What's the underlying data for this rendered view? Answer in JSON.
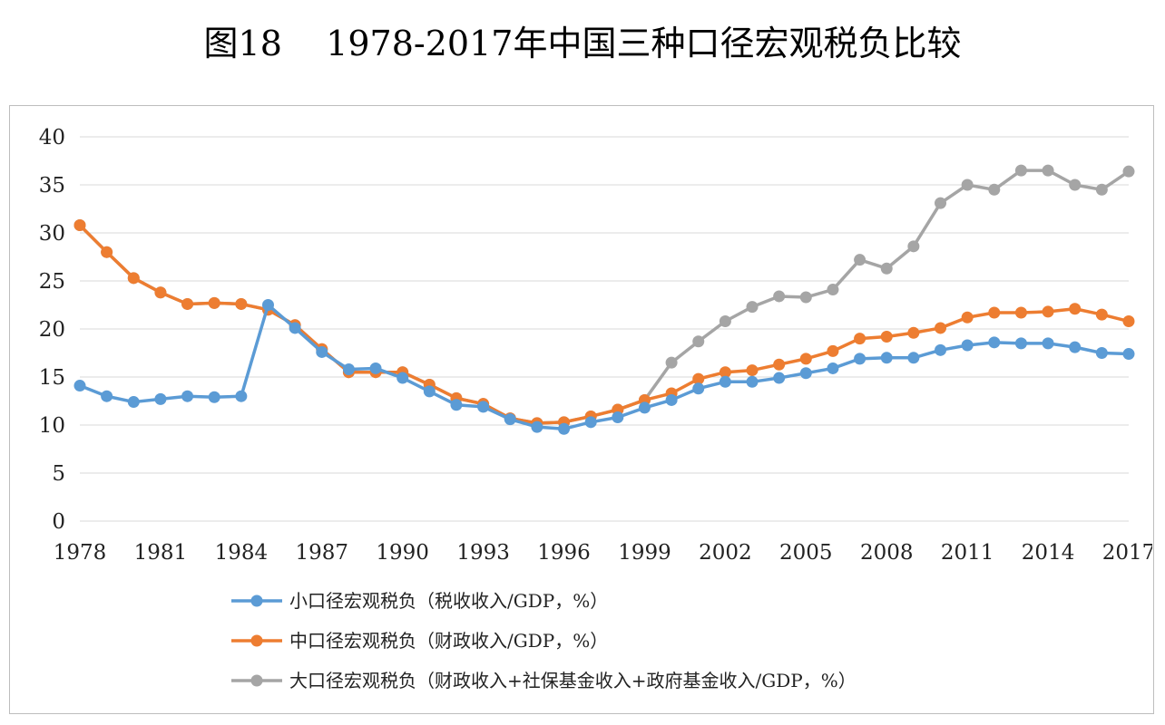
{
  "title": "图18    1978-2017年中国三种口径宏观税负比较",
  "chart_data": {
    "type": "line",
    "title": "图18    1978-2017年中国三种口径宏观税负比较",
    "xlabel": "",
    "ylabel": "",
    "ylim": [
      0,
      40
    ],
    "xlim": [
      1978,
      2017
    ],
    "y_ticks": [
      "0",
      "5",
      "10",
      "15",
      "20",
      "25",
      "30",
      "35",
      "40"
    ],
    "x_ticks": [
      "1978",
      "1981",
      "1984",
      "1987",
      "1990",
      "1993",
      "1996",
      "1999",
      "2002",
      "2005",
      "2008",
      "2011",
      "2014",
      "2017"
    ],
    "grid": true,
    "legend_position": "bottom-left",
    "x": [
      1978,
      1979,
      1980,
      1981,
      1982,
      1983,
      1984,
      1985,
      1986,
      1987,
      1988,
      1989,
      1990,
      1991,
      1992,
      1993,
      1994,
      1995,
      1996,
      1997,
      1998,
      1999,
      2000,
      2001,
      2002,
      2003,
      2004,
      2005,
      2006,
      2007,
      2008,
      2009,
      2010,
      2011,
      2012,
      2013,
      2014,
      2015,
      2016,
      2017
    ],
    "series": [
      {
        "name": "小口径宏观税负（税收收入/GDP，%）",
        "color": "#5b9bd5",
        "values": [
          14.1,
          13.0,
          12.4,
          12.7,
          13.0,
          12.9,
          13.0,
          22.5,
          20.1,
          17.6,
          15.8,
          15.9,
          14.9,
          13.5,
          12.1,
          11.9,
          10.6,
          9.8,
          9.6,
          10.3,
          10.8,
          11.8,
          12.6,
          13.8,
          14.5,
          14.5,
          14.9,
          15.4,
          15.9,
          16.9,
          17.0,
          17.0,
          17.8,
          18.3,
          18.6,
          18.5,
          18.5,
          18.1,
          17.5,
          17.4
        ]
      },
      {
        "name": "中口径宏观税负（财政收入/GDP，%）",
        "color": "#ed7d31",
        "values": [
          30.8,
          28.0,
          25.3,
          23.8,
          22.6,
          22.7,
          22.6,
          22.0,
          20.4,
          17.9,
          15.5,
          15.5,
          15.5,
          14.2,
          12.8,
          12.2,
          10.7,
          10.2,
          10.3,
          10.9,
          11.6,
          12.6,
          13.3,
          14.8,
          15.5,
          15.7,
          16.3,
          16.9,
          17.7,
          19.0,
          19.2,
          19.6,
          20.1,
          21.2,
          21.7,
          21.7,
          21.8,
          22.1,
          21.5,
          20.8
        ]
      },
      {
        "name": "大口径宏观税负（财政收入+社保基金收入+政府基金收入/GDP，%）",
        "color": "#a5a5a5",
        "values": [
          30.8,
          28.0,
          25.3,
          23.8,
          22.6,
          22.7,
          22.6,
          22.0,
          20.4,
          17.9,
          15.5,
          15.5,
          15.5,
          14.2,
          12.8,
          12.2,
          10.7,
          10.2,
          10.3,
          10.9,
          11.6,
          12.6,
          16.5,
          18.7,
          20.8,
          22.3,
          23.4,
          23.3,
          24.1,
          27.2,
          26.3,
          28.6,
          33.1,
          35.0,
          34.5,
          36.5,
          36.5,
          35.0,
          34.5,
          36.4
        ]
      }
    ]
  }
}
